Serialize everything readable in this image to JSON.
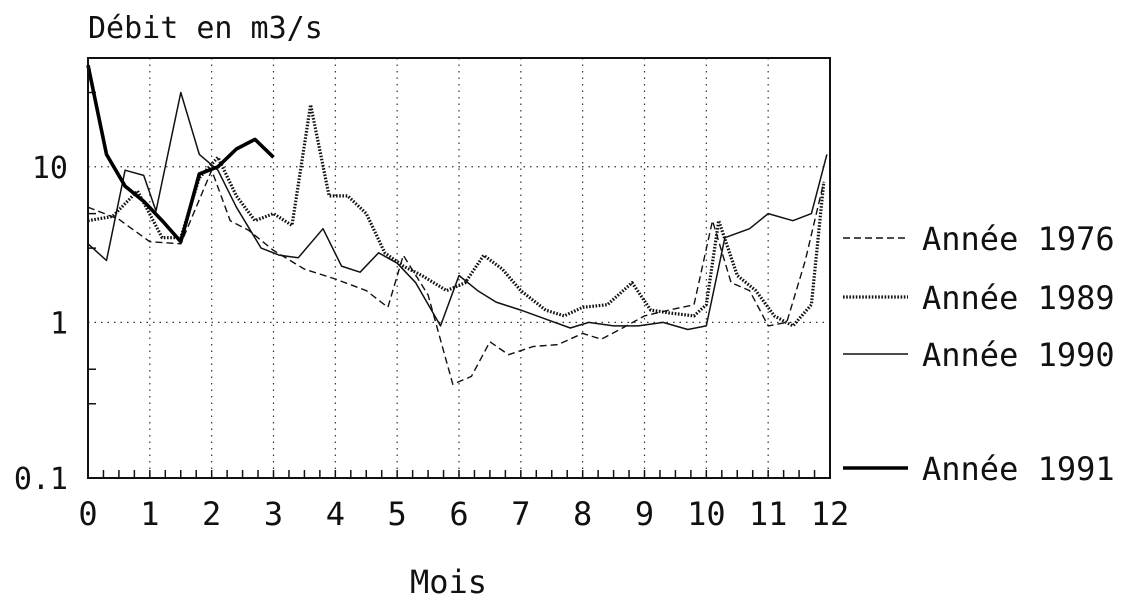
{
  "chart_data": {
    "type": "line",
    "title": "",
    "ylabel": "Débit en m3/s",
    "xlabel": "Mois",
    "xlim": [
      0,
      12
    ],
    "ylim": [
      0.1,
      50
    ],
    "y_scale": "log",
    "x_ticks": [
      "0",
      "1",
      "2",
      "3",
      "4",
      "5",
      "6",
      "7",
      "8",
      "9",
      "10",
      "11",
      "12"
    ],
    "y_ticks": [
      {
        "value": 0.1,
        "label": "0.1"
      },
      {
        "value": 1,
        "label": "1"
      },
      {
        "value": 10,
        "label": "10"
      }
    ],
    "grid": "dotted",
    "legend_position": "right",
    "series": [
      {
        "name": "Année 1976",
        "style": "dashed",
        "x": [
          0,
          0.5,
          1,
          1.5,
          2,
          2.3,
          2.6,
          3,
          3.5,
          4,
          4.5,
          4.85,
          5.1,
          5.5,
          5.9,
          6.2,
          6.5,
          6.8,
          7.2,
          7.6,
          8,
          8.3,
          8.6,
          9,
          9.4,
          9.8,
          10.1,
          10.4,
          10.7,
          11,
          11.3,
          11.6,
          11.9
        ],
        "y": [
          5.5,
          4.6,
          3.3,
          3.2,
          9.5,
          4.5,
          3.9,
          2.9,
          2.2,
          1.9,
          1.6,
          1.25,
          2.7,
          1.5,
          0.4,
          0.45,
          0.75,
          0.62,
          0.7,
          0.72,
          0.85,
          0.78,
          0.9,
          1.1,
          1.2,
          1.3,
          4.5,
          1.8,
          1.6,
          0.95,
          1.0,
          2.5,
          8.0
        ]
      },
      {
        "name": "Année 1989",
        "style": "dotted",
        "x": [
          0,
          0.4,
          0.8,
          1.2,
          1.5,
          1.8,
          2.1,
          2.4,
          2.7,
          3,
          3.3,
          3.6,
          3.9,
          4.2,
          4.5,
          4.8,
          5.1,
          5.4,
          5.8,
          6.1,
          6.4,
          6.7,
          7,
          7.4,
          7.7,
          8,
          8.4,
          8.8,
          9.1,
          9.4,
          9.8,
          10,
          10.2,
          10.5,
          10.8,
          11.1,
          11.4,
          11.7,
          11.9
        ],
        "y": [
          4.5,
          4.8,
          7.0,
          3.5,
          3.5,
          8.5,
          11.5,
          6.5,
          4.5,
          5.0,
          4.2,
          25.0,
          6.5,
          6.5,
          5.0,
          2.8,
          2.3,
          2.0,
          1.6,
          1.8,
          2.7,
          2.2,
          1.6,
          1.2,
          1.1,
          1.25,
          1.3,
          1.8,
          1.2,
          1.15,
          1.1,
          1.3,
          4.5,
          2.0,
          1.6,
          1.1,
          0.95,
          1.3,
          8.0
        ]
      },
      {
        "name": "Année 1990",
        "style": "solid",
        "x": [
          0,
          0.3,
          0.6,
          0.9,
          1.1,
          1.5,
          1.8,
          2.1,
          2.4,
          2.8,
          3.1,
          3.4,
          3.8,
          4.1,
          4.4,
          4.7,
          5.0,
          5.3,
          5.7,
          6.0,
          6.3,
          6.6,
          7.0,
          7.4,
          7.8,
          8.1,
          8.5,
          8.9,
          9.3,
          9.7,
          10.0,
          10.3,
          10.7,
          11.0,
          11.4,
          11.7,
          11.95
        ],
        "y": [
          3.2,
          2.5,
          9.5,
          8.8,
          5.2,
          30.0,
          12.0,
          9.5,
          5.5,
          3.0,
          2.7,
          2.6,
          4.0,
          2.3,
          2.1,
          2.8,
          2.4,
          1.8,
          0.95,
          2.0,
          1.6,
          1.35,
          1.2,
          1.05,
          0.92,
          1.0,
          0.95,
          0.95,
          1.0,
          0.9,
          0.95,
          3.5,
          4.0,
          5.0,
          4.5,
          5.0,
          12.0
        ]
      },
      {
        "name": "Année 1991",
        "style": "thick",
        "x": [
          0,
          0.3,
          0.6,
          0.9,
          1.2,
          1.5,
          1.8,
          2.1,
          2.4,
          2.7,
          3.0
        ],
        "y": [
          45,
          12,
          7.5,
          6.0,
          4.5,
          3.3,
          9.0,
          10.0,
          13.0,
          15.0,
          11.5
        ]
      }
    ]
  }
}
